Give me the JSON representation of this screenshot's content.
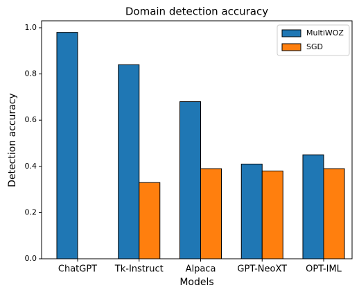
{
  "chart_data": {
    "type": "bar",
    "title": "Domain detection accuracy",
    "x_label": "Models",
    "y_label": "Detection accuracy",
    "categories": [
      "ChatGPT",
      "Tk-Instruct",
      "Alpaca",
      "GPT-NeoXT",
      "OPT-IML"
    ],
    "series": [
      {
        "name": "MultiWOZ",
        "color": "#1f77b4",
        "values": [
          0.98,
          0.84,
          0.68,
          0.41,
          0.45
        ]
      },
      {
        "name": "SGD",
        "color": "#ff7f0e",
        "values": [
          0,
          0.33,
          0.39,
          0.38,
          0.39
        ]
      }
    ],
    "ylim": [
      0,
      1.03
    ],
    "yticks": [
      {
        "value": 0,
        "label": "0.0"
      },
      0.2,
      0.4,
      0.6,
      0.8,
      {
        "value": 1,
        "label": "1.0"
      }
    ],
    "legend": "upper right"
  }
}
